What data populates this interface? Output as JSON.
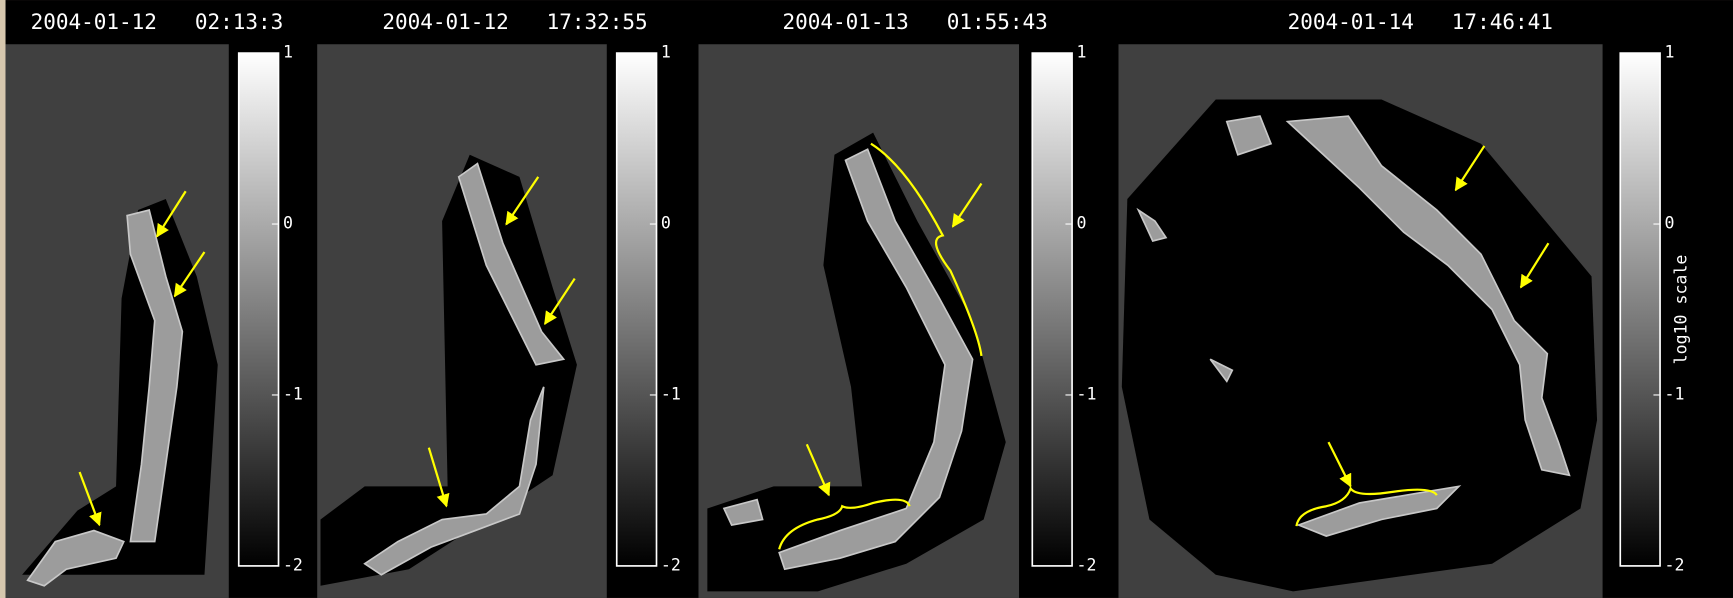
{
  "panels": [
    {
      "title": "2004-01-12   02:13:3",
      "clim": [
        -2,
        1
      ],
      "ticks": [
        1,
        0,
        -1,
        -2
      ]
    },
    {
      "title": "2004-01-12   17:32:55",
      "clim": [
        -2,
        1
      ],
      "ticks": [
        1,
        0,
        -1,
        -2
      ]
    },
    {
      "title": "2004-01-13   01:55:43",
      "clim": [
        -2,
        1
      ],
      "ticks": [
        1,
        0,
        -1,
        -2
      ]
    },
    {
      "title": "2004-01-14   17:46:41",
      "clim": [
        -2,
        1
      ],
      "ticks": [
        1,
        0,
        -1,
        -2
      ],
      "colorbar_label": "log10 scale"
    }
  ]
}
